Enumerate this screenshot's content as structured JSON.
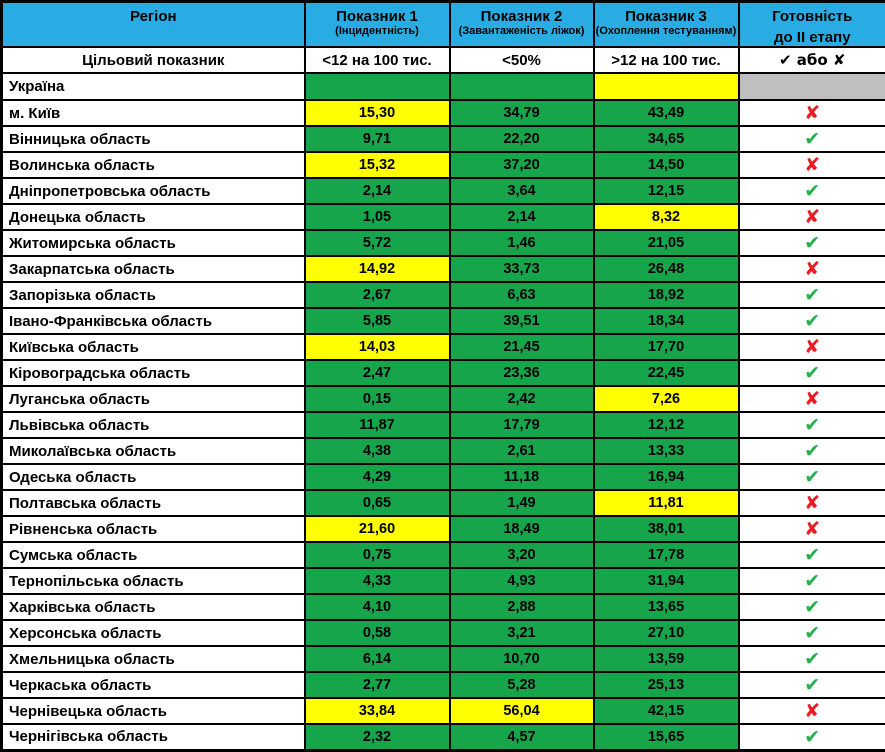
{
  "colors": {
    "header_blue": "#29ace3",
    "cell_green": "#17a54b",
    "cell_yellow": "#ffff00",
    "empty_gray": "#bfbfbf",
    "check_green": "#22b14c",
    "cross_red": "#ed1c24",
    "border_black": "#000000"
  },
  "chart_data": {
    "type": "table",
    "columns": [
      {
        "title": "Регіон",
        "sub": ""
      },
      {
        "title": "Показник 1",
        "sub": "(Інцидентність)"
      },
      {
        "title": "Показник 2",
        "sub": "(Завантаженість ліжок)"
      },
      {
        "title": "Показник 3",
        "sub": "(Охоплення тестуванням)"
      },
      {
        "title": "Готовність",
        "sub": "до II етапу"
      }
    ],
    "target_row": {
      "label": "Цільовий показник",
      "values": [
        "<12 на 100 тис.",
        "<50%",
        ">12 на 100 тис."
      ],
      "readiness": "✔ або ✘"
    },
    "legend": {
      "pass_symbol": "✔",
      "fail_symbol": "✘"
    },
    "rows": [
      {
        "region": "Україна",
        "values": [
          "",
          "",
          ""
        ],
        "cell_colors": [
          "green",
          "green",
          "yellow"
        ],
        "status": "empty"
      },
      {
        "region": "м. Київ",
        "values": [
          "15,30",
          "34,79",
          "43,49"
        ],
        "cell_colors": [
          "yellow",
          "green",
          "green"
        ],
        "status": "fail"
      },
      {
        "region": "Вінницька область",
        "values": [
          "9,71",
          "22,20",
          "34,65"
        ],
        "cell_colors": [
          "green",
          "green",
          "green"
        ],
        "status": "pass"
      },
      {
        "region": "Волинська область",
        "values": [
          "15,32",
          "37,20",
          "14,50"
        ],
        "cell_colors": [
          "yellow",
          "green",
          "green"
        ],
        "status": "fail"
      },
      {
        "region": "Дніпропетровська область",
        "values": [
          "2,14",
          "3,64",
          "12,15"
        ],
        "cell_colors": [
          "green",
          "green",
          "green"
        ],
        "status": "pass"
      },
      {
        "region": "Донецька область",
        "values": [
          "1,05",
          "2,14",
          "8,32"
        ],
        "cell_colors": [
          "green",
          "green",
          "yellow"
        ],
        "status": "fail"
      },
      {
        "region": "Житомирська область",
        "values": [
          "5,72",
          "1,46",
          "21,05"
        ],
        "cell_colors": [
          "green",
          "green",
          "green"
        ],
        "status": "pass"
      },
      {
        "region": "Закарпатська область",
        "values": [
          "14,92",
          "33,73",
          "26,48"
        ],
        "cell_colors": [
          "yellow",
          "green",
          "green"
        ],
        "status": "fail"
      },
      {
        "region": "Запорізька область",
        "values": [
          "2,67",
          "6,63",
          "18,92"
        ],
        "cell_colors": [
          "green",
          "green",
          "green"
        ],
        "status": "pass"
      },
      {
        "region": "Івано-Франківська область",
        "values": [
          "5,85",
          "39,51",
          "18,34"
        ],
        "cell_colors": [
          "green",
          "green",
          "green"
        ],
        "status": "pass"
      },
      {
        "region": "Київська область",
        "values": [
          "14,03",
          "21,45",
          "17,70"
        ],
        "cell_colors": [
          "yellow",
          "green",
          "green"
        ],
        "status": "fail"
      },
      {
        "region": "Кіровоградська область",
        "values": [
          "2,47",
          "23,36",
          "22,45"
        ],
        "cell_colors": [
          "green",
          "green",
          "green"
        ],
        "status": "pass"
      },
      {
        "region": "Луганська область",
        "values": [
          "0,15",
          "2,42",
          "7,26"
        ],
        "cell_colors": [
          "green",
          "green",
          "yellow"
        ],
        "status": "fail"
      },
      {
        "region": "Львівська область",
        "values": [
          "11,87",
          "17,79",
          "12,12"
        ],
        "cell_colors": [
          "green",
          "green",
          "green"
        ],
        "status": "pass"
      },
      {
        "region": "Миколаївська область",
        "values": [
          "4,38",
          "2,61",
          "13,33"
        ],
        "cell_colors": [
          "green",
          "green",
          "green"
        ],
        "status": "pass"
      },
      {
        "region": "Одеська область",
        "values": [
          "4,29",
          "11,18",
          "16,94"
        ],
        "cell_colors": [
          "green",
          "green",
          "green"
        ],
        "status": "pass"
      },
      {
        "region": "Полтавська область",
        "values": [
          "0,65",
          "1,49",
          "11,81"
        ],
        "cell_colors": [
          "green",
          "green",
          "yellow"
        ],
        "status": "fail"
      },
      {
        "region": "Рівненська область",
        "values": [
          "21,60",
          "18,49",
          "38,01"
        ],
        "cell_colors": [
          "yellow",
          "green",
          "green"
        ],
        "status": "fail"
      },
      {
        "region": "Сумська область",
        "values": [
          "0,75",
          "3,20",
          "17,78"
        ],
        "cell_colors": [
          "green",
          "green",
          "green"
        ],
        "status": "pass"
      },
      {
        "region": "Тернопільська область",
        "values": [
          "4,33",
          "4,93",
          "31,94"
        ],
        "cell_colors": [
          "green",
          "green",
          "green"
        ],
        "status": "pass"
      },
      {
        "region": "Харківська область",
        "values": [
          "4,10",
          "2,88",
          "13,65"
        ],
        "cell_colors": [
          "green",
          "green",
          "green"
        ],
        "status": "pass"
      },
      {
        "region": "Херсонська область",
        "values": [
          "0,58",
          "3,21",
          "27,10"
        ],
        "cell_colors": [
          "green",
          "green",
          "green"
        ],
        "status": "pass"
      },
      {
        "region": "Хмельницька область",
        "values": [
          "6,14",
          "10,70",
          "13,59"
        ],
        "cell_colors": [
          "green",
          "green",
          "green"
        ],
        "status": "pass"
      },
      {
        "region": "Черкаська область",
        "values": [
          "2,77",
          "5,28",
          "25,13"
        ],
        "cell_colors": [
          "green",
          "green",
          "green"
        ],
        "status": "pass"
      },
      {
        "region": "Чернівецька область",
        "values": [
          "33,84",
          "56,04",
          "42,15"
        ],
        "cell_colors": [
          "yellow",
          "yellow",
          "green"
        ],
        "status": "fail"
      },
      {
        "region": "Чернігівська область",
        "values": [
          "2,32",
          "4,57",
          "15,65"
        ],
        "cell_colors": [
          "green",
          "green",
          "green"
        ],
        "status": "pass"
      }
    ]
  }
}
